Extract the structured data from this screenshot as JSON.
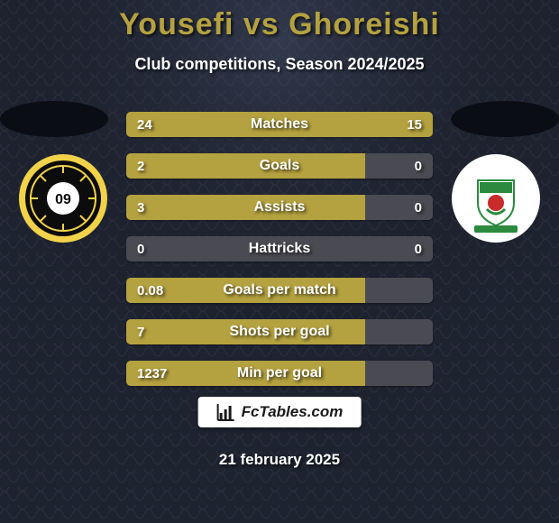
{
  "title": "Yousefi vs Ghoreishi",
  "title_color": "#b4a13f",
  "subtitle": "Club competitions, Season 2024/2025",
  "background": {
    "base_color": "#1e2330",
    "texture_color": "#2a3040",
    "halo_top_color": "rgba(90,100,130,0.35)"
  },
  "silhouette_color": "#0b0d14",
  "logos": {
    "left": {
      "outer_bg": "#f2d24a",
      "inner_bg": "#0c0c0c",
      "ring_color": "#f2d24a",
      "center_bg": "#ffffff",
      "center_text": "09",
      "center_text_color": "#0c0c0c"
    },
    "right": {
      "outer_bg": "#ffffff",
      "shield_green": "#2b8a3e",
      "shield_red": "#c92a2a",
      "shield_white": "#ffffff",
      "scroll_color": "#2b8a3e"
    }
  },
  "bars": {
    "track_color": "#4a4a52",
    "left_fill_color": "#b4a13f",
    "right_fill_color": "#b4a13f",
    "rows": [
      {
        "label": "Matches",
        "left_val": "24",
        "right_val": "15",
        "left_pct": 50,
        "right_pct": 50
      },
      {
        "label": "Goals",
        "left_val": "2",
        "right_val": "0",
        "left_pct": 78,
        "right_pct": 0
      },
      {
        "label": "Assists",
        "left_val": "3",
        "right_val": "0",
        "left_pct": 78,
        "right_pct": 0
      },
      {
        "label": "Hattricks",
        "left_val": "0",
        "right_val": "0",
        "left_pct": 0,
        "right_pct": 0
      },
      {
        "label": "Goals per match",
        "left_val": "0.08",
        "right_val": "",
        "left_pct": 78,
        "right_pct": 0
      },
      {
        "label": "Shots per goal",
        "left_val": "7",
        "right_val": "",
        "left_pct": 78,
        "right_pct": 0
      },
      {
        "label": "Min per goal",
        "left_val": "1237",
        "right_val": "",
        "left_pct": 78,
        "right_pct": 0
      }
    ]
  },
  "brand": {
    "text": "FcTables.com",
    "text_color": "#1a1a1a",
    "icon_color": "#1a1a1a"
  },
  "date": "21 february 2025"
}
